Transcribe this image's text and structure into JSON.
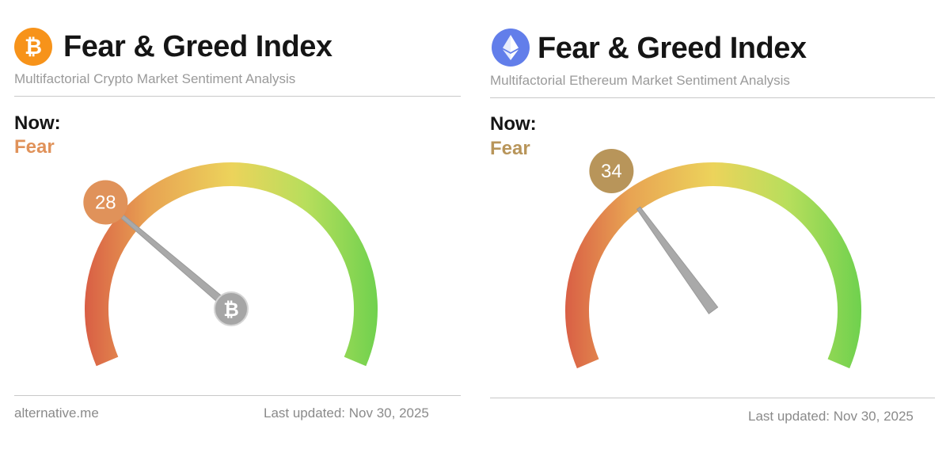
{
  "panels": [
    {
      "coin_icon": "bitcoin-icon",
      "accent_color": "#f7931a",
      "title": "Fear & Greed Index",
      "subtitle": "Multifactorial Crypto Market Sentiment Analysis",
      "now_label": "Now:",
      "status": "Fear",
      "status_color": "#e0925a",
      "value": 28,
      "value_badge_color": "#e0925a",
      "source": "alternative.me",
      "last_updated": "Last updated: Nov 30, 2025"
    },
    {
      "coin_icon": "ethereum-icon",
      "accent_color": "#627eea",
      "title": "Fear & Greed Index",
      "subtitle": "Multifactorial Ethereum Market Sentiment Analysis",
      "now_label": "Now:",
      "status": "Fear",
      "status_color": "#b8955a",
      "value": 34,
      "value_badge_color": "#b8955a",
      "last_updated": "Last updated: Nov 30, 2025"
    }
  ],
  "gauge": {
    "min": 0,
    "max": 100,
    "colors": [
      "#d95f45",
      "#e8a453",
      "#ecd35b",
      "#b8de5c",
      "#6fd14e"
    ]
  }
}
